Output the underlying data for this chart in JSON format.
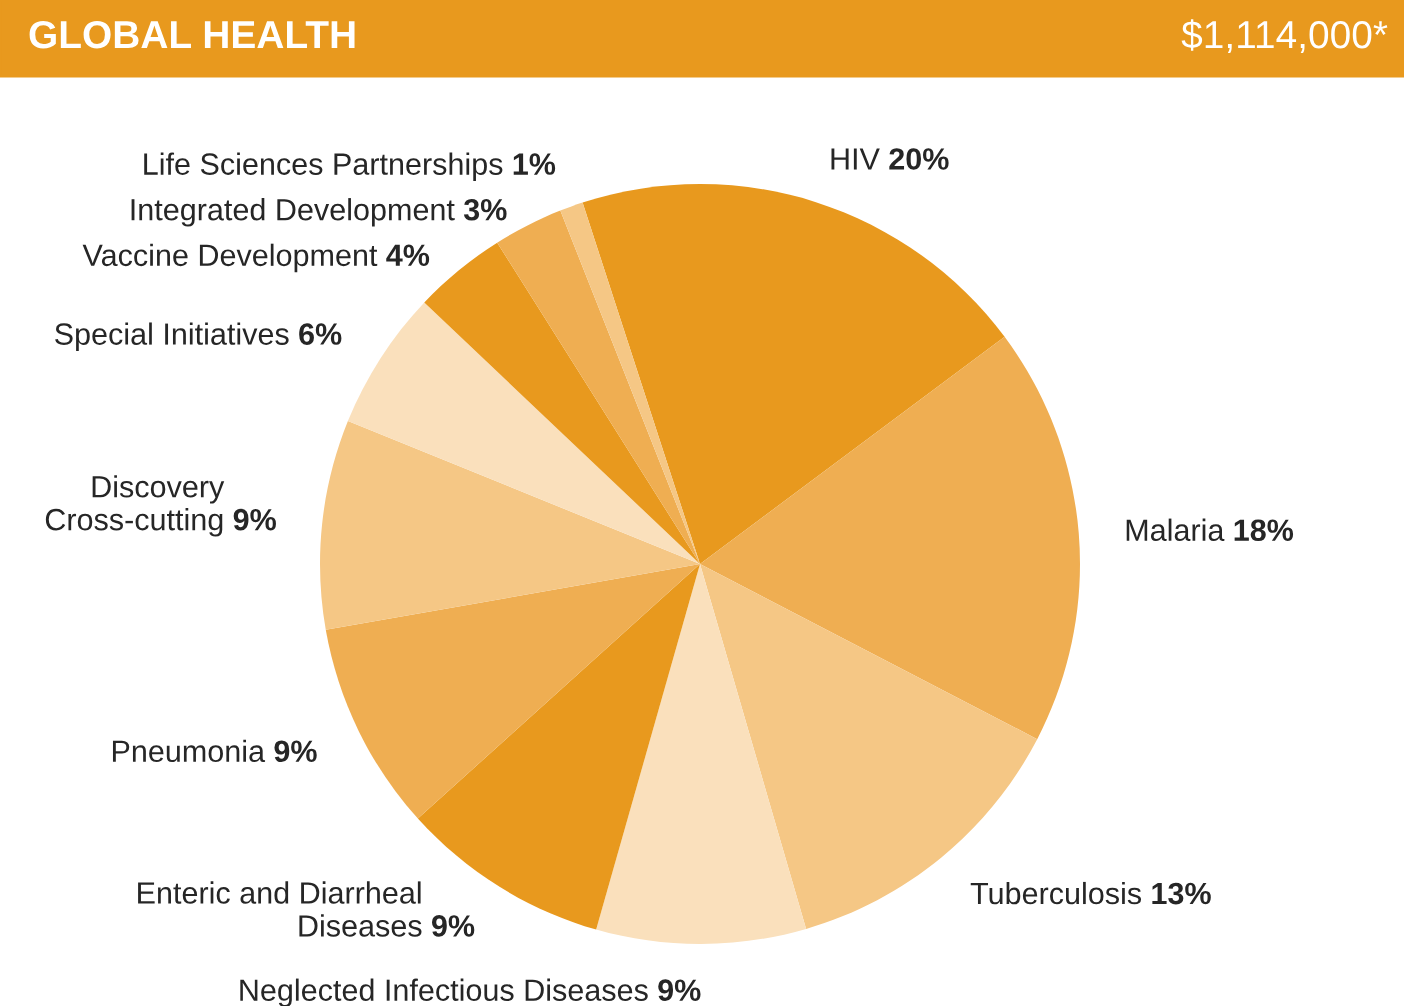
{
  "chart_data": {
    "type": "pie",
    "title": "GLOBAL HEALTH",
    "annotations": [
      "$1,114,000*"
    ],
    "categories": [
      "HIV",
      "Malaria",
      "Tuberculosis",
      "Neglected Infectious Diseases",
      "Enteric and Diarrheal\nDiseases",
      "Pneumonia",
      "Discovery\nCross-cutting",
      "Special Initiatives",
      "Vaccine Development",
      "Integrated Development",
      "Life Sciences Partnerships"
    ],
    "values": [
      20,
      18,
      13,
      9,
      9,
      9,
      9,
      6,
      4,
      3,
      1
    ],
    "value_labels": [
      "20%",
      "18%",
      "13%",
      "9%",
      "9%",
      "9%",
      "9%",
      "6%",
      "4%",
      "3%",
      "1%"
    ],
    "colors": [
      "#e8991e",
      "#efae52",
      "#f5c785",
      "#fae0bc",
      "#e8991e",
      "#efae52",
      "#f5c785",
      "#fae0bc",
      "#e8991e",
      "#efae52",
      "#f5c785"
    ]
  }
}
